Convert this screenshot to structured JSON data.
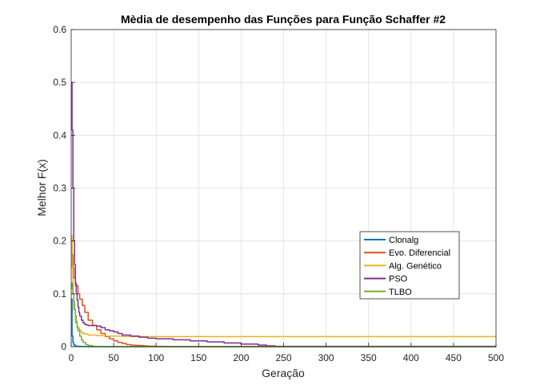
{
  "chart_data": {
    "type": "line",
    "title": "Mèdia de desempenho das Funções para Função Schaffer #2",
    "xlabel": "Geração",
    "ylabel": "Melhor F(x)",
    "xlim": [
      0,
      500
    ],
    "ylim": [
      0,
      0.6
    ],
    "xticks": [
      "0",
      "50",
      "100",
      "150",
      "200",
      "250",
      "300",
      "350",
      "400",
      "450",
      "500"
    ],
    "yticks": [
      "0",
      "0.1",
      "0.2",
      "0.3",
      "0.4",
      "0.5",
      "0.6"
    ],
    "grid": true,
    "legend_position": "center-right",
    "series": [
      {
        "name": "Clonalg",
        "color": "#0072BD",
        "x": [
          0,
          1,
          2,
          3,
          5,
          8,
          12,
          16,
          20,
          500
        ],
        "y": [
          0.09,
          0.02,
          0.008,
          0.003,
          0.001,
          0.0005,
          0.0002,
          0.0001,
          0,
          0
        ]
      },
      {
        "name": "Evo. Diferencial",
        "color": "#D95319",
        "x": [
          0,
          1,
          2,
          3,
          5,
          8,
          10,
          13,
          16,
          20,
          25,
          30,
          35,
          40,
          45,
          50,
          55,
          60,
          65,
          70,
          75,
          80,
          85,
          90,
          100,
          110,
          120,
          500
        ],
        "y": [
          0.2,
          0.175,
          0.15,
          0.13,
          0.115,
          0.1,
          0.09,
          0.078,
          0.065,
          0.05,
          0.04,
          0.032,
          0.025,
          0.019,
          0.015,
          0.011,
          0.008,
          0.006,
          0.004,
          0.003,
          0.0025,
          0.002,
          0.0015,
          0.001,
          0.0005,
          0.0002,
          0.0001,
          0
        ]
      },
      {
        "name": "Alg. Genético",
        "color": "#EDB120",
        "x": [
          0,
          1,
          2,
          3,
          5,
          7,
          10,
          12,
          15,
          20,
          30,
          40,
          50,
          60,
          500
        ],
        "y": [
          0.21,
          0.15,
          0.1,
          0.07,
          0.045,
          0.035,
          0.03,
          0.026,
          0.024,
          0.022,
          0.021,
          0.02,
          0.02,
          0.019,
          0.019
        ]
      },
      {
        "name": "PSO",
        "color": "#7E2F8E",
        "x": [
          0,
          1,
          2,
          3,
          4,
          5,
          6,
          7,
          8,
          9,
          10,
          12,
          14,
          16,
          18,
          20,
          25,
          30,
          35,
          40,
          45,
          50,
          55,
          60,
          70,
          80,
          90,
          100,
          120,
          140,
          160,
          180,
          200,
          220,
          230,
          240,
          500
        ],
        "y": [
          0.5,
          0.41,
          0.3,
          0.2,
          0.155,
          0.12,
          0.1,
          0.088,
          0.075,
          0.065,
          0.058,
          0.05,
          0.045,
          0.042,
          0.041,
          0.04,
          0.04,
          0.039,
          0.036,
          0.032,
          0.03,
          0.028,
          0.025,
          0.022,
          0.02,
          0.018,
          0.016,
          0.015,
          0.013,
          0.011,
          0.009,
          0.007,
          0.005,
          0.003,
          0.0015,
          0.0005,
          0
        ]
      },
      {
        "name": "TLBO",
        "color": "#77AC30",
        "x": [
          0,
          1,
          2,
          3,
          4,
          5,
          6,
          7,
          8,
          10,
          12,
          14,
          17,
          20,
          25,
          30,
          35,
          40,
          500
        ],
        "y": [
          0.11,
          0.12,
          0.1,
          0.085,
          0.07,
          0.058,
          0.047,
          0.038,
          0.03,
          0.02,
          0.013,
          0.008,
          0.004,
          0.002,
          0.0008,
          0.0003,
          0.0001,
          0,
          0
        ]
      }
    ]
  }
}
